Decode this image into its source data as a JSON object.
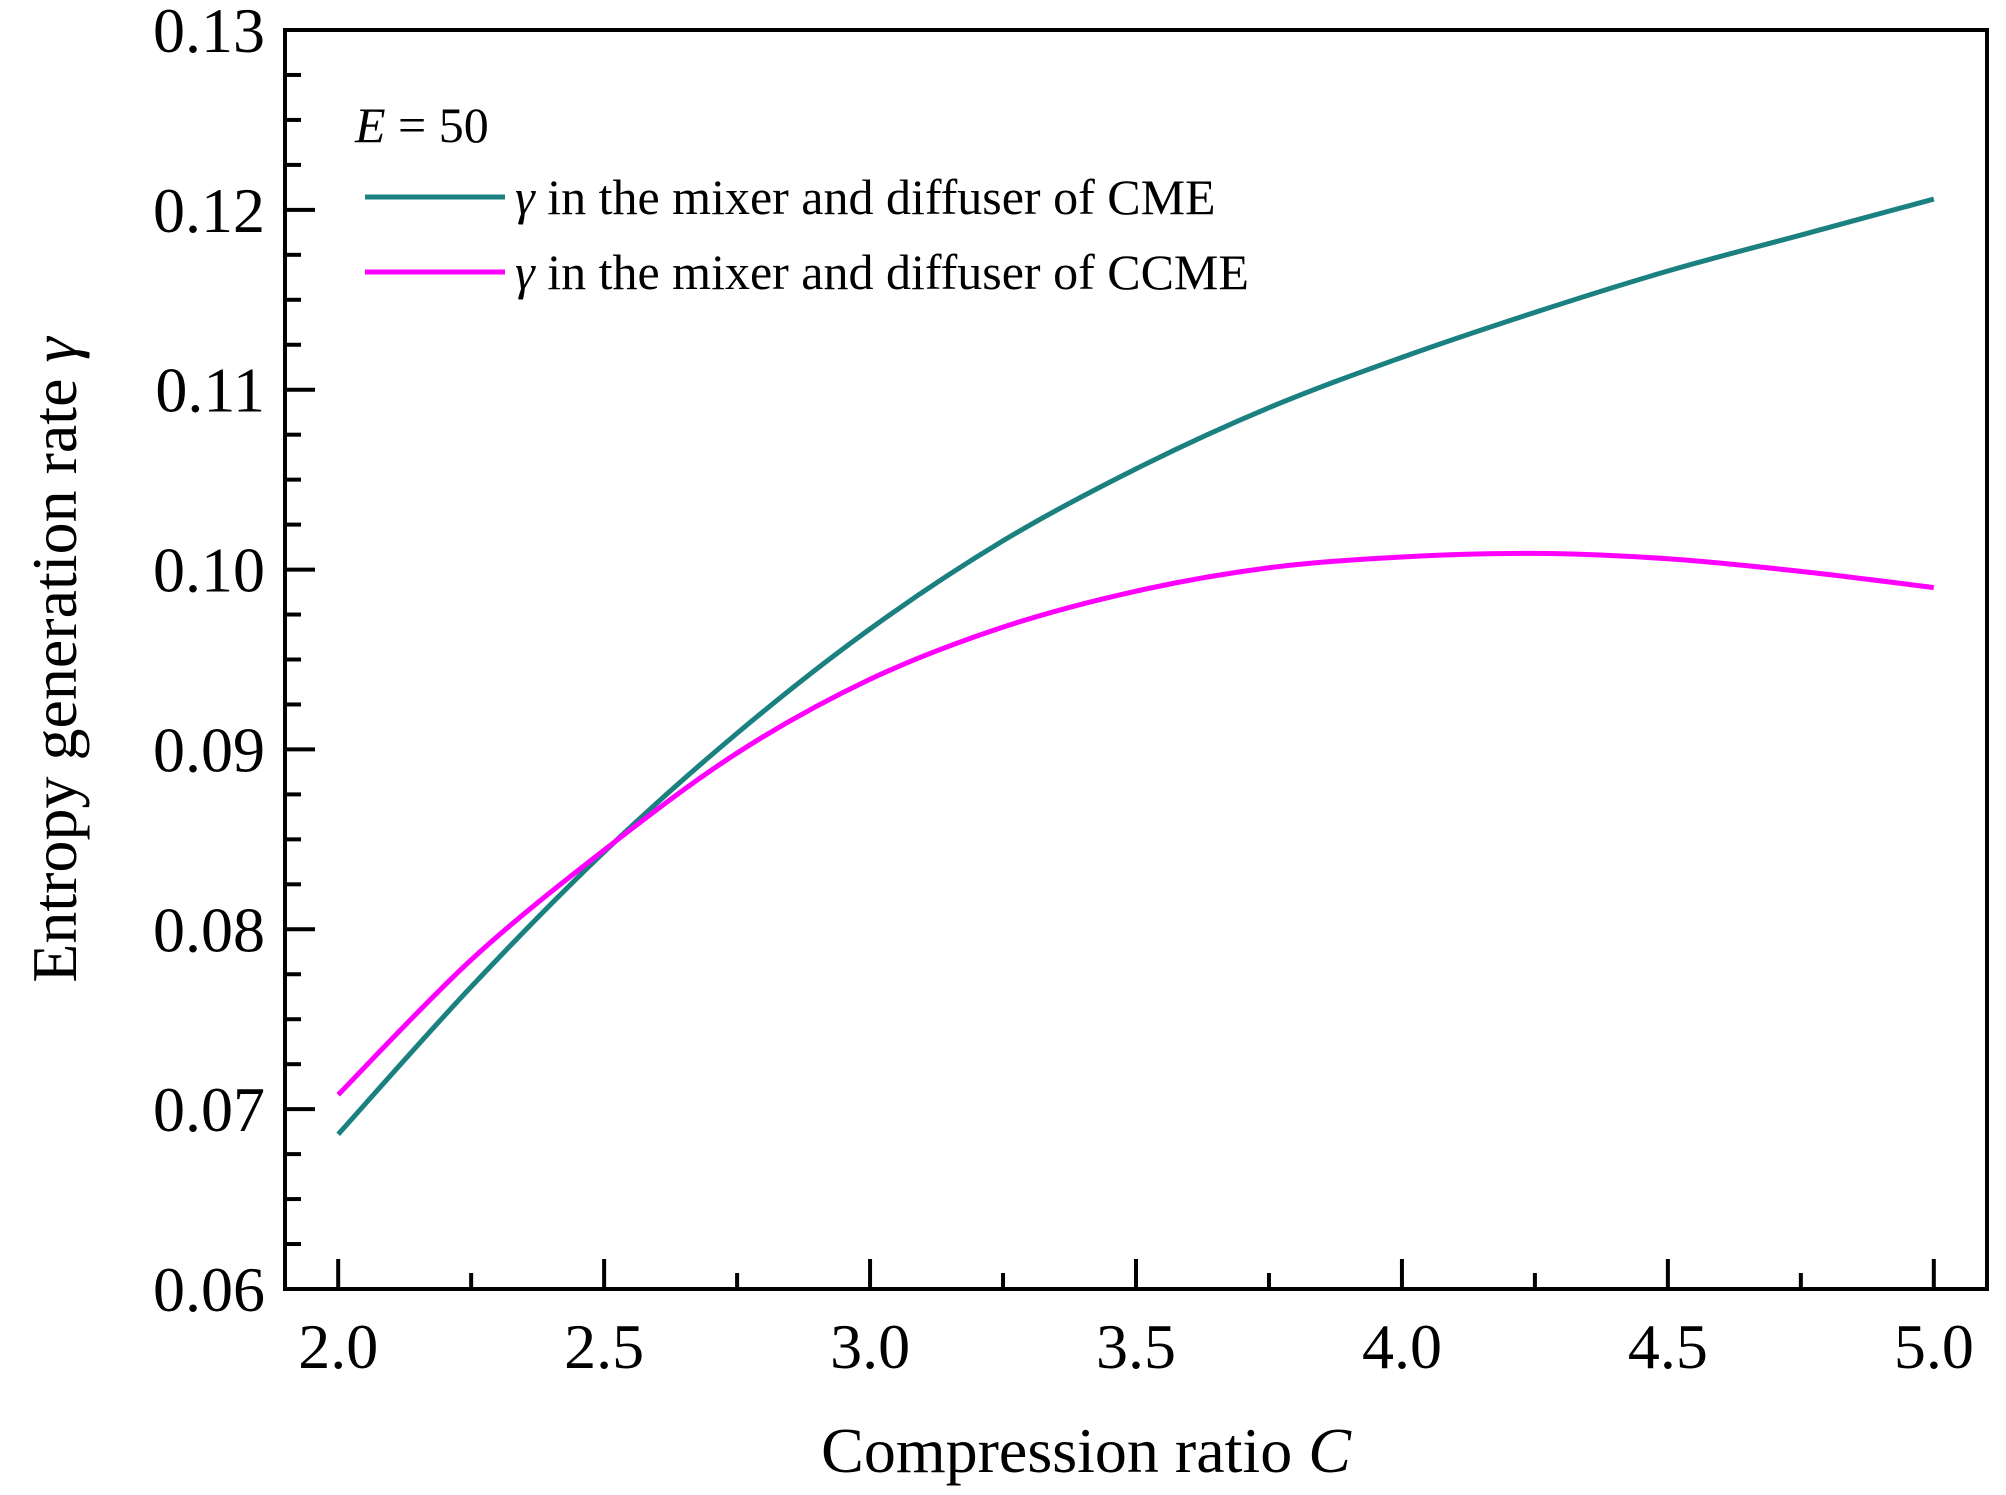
{
  "chart_data": {
    "type": "line",
    "title": "",
    "xlabel": "Compression ratio",
    "xlabel_var": "C",
    "ylabel": "Entropy generation rate",
    "ylabel_var": "γ",
    "xlim": [
      1.9,
      5.1
    ],
    "ylim": [
      0.06,
      0.13
    ],
    "x_ticks": [
      "2.0",
      "2.5",
      "3.0",
      "3.5",
      "4.0",
      "4.5",
      "5.0"
    ],
    "y_ticks": [
      "0.06",
      "0.07",
      "0.08",
      "0.09",
      "0.10",
      "0.11",
      "0.12",
      "0.13"
    ],
    "grid": false,
    "annotation": {
      "var": "E",
      "text": " = 50"
    },
    "legend_position": "top-left",
    "x": [
      2.0,
      2.25,
      2.5,
      2.75,
      3.0,
      3.25,
      3.5,
      3.75,
      4.0,
      4.25,
      4.5,
      4.75,
      5.0
    ],
    "series": [
      {
        "name": "γ in the mixer and diffuser of CME",
        "legend_var": "γ",
        "legend_text": " in the mixer and diffuser of CME",
        "color": "#1b8080",
        "values": [
          0.0686,
          0.0768,
          0.0843,
          0.0909,
          0.0967,
          0.1016,
          0.1056,
          0.109,
          0.1118,
          0.1143,
          0.1166,
          0.1186,
          0.1206
        ]
      },
      {
        "name": "γ in the mixer and diffuser of CCME",
        "legend_var": "γ",
        "legend_text": " in the mixer and diffuser of CCME",
        "color": "#ff00ff",
        "values": [
          0.0708,
          0.0783,
          0.0844,
          0.0898,
          0.0939,
          0.0968,
          0.0988,
          0.1001,
          0.1007,
          0.1009,
          0.1006,
          0.0999,
          0.099
        ]
      }
    ]
  }
}
